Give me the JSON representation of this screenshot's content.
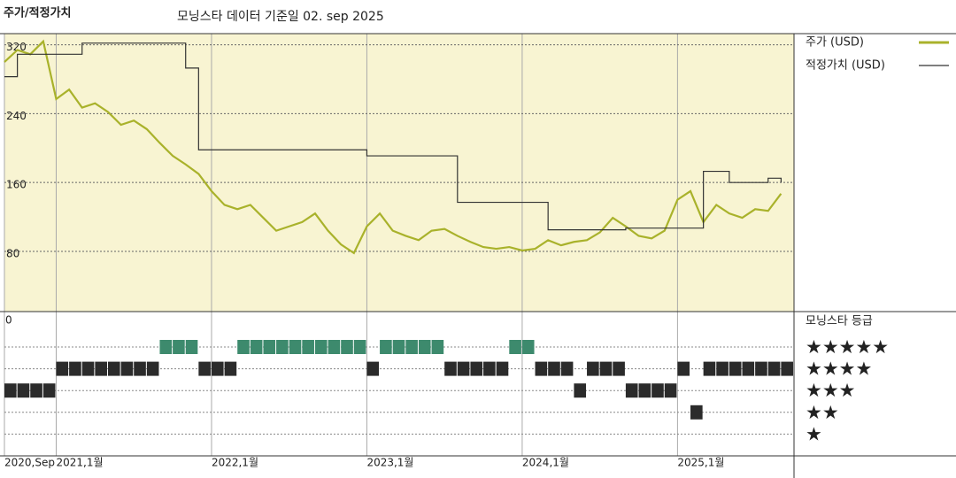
{
  "chart_data": [
    {
      "type": "line",
      "title": "주가/적정가치",
      "subtitle": "모닝스타 데이터 기준일 02. sep 2025",
      "x": [
        "2020-09",
        "2020-10",
        "2020-11",
        "2020-12",
        "2021-01",
        "2021-02",
        "2021-03",
        "2021-04",
        "2021-05",
        "2021-06",
        "2021-07",
        "2021-08",
        "2021-09",
        "2021-10",
        "2021-11",
        "2021-12",
        "2022-01",
        "2022-02",
        "2022-03",
        "2022-04",
        "2022-05",
        "2022-06",
        "2022-07",
        "2022-08",
        "2022-09",
        "2022-10",
        "2022-11",
        "2022-12",
        "2023-01",
        "2023-02",
        "2023-03",
        "2023-04",
        "2023-05",
        "2023-06",
        "2023-07",
        "2023-08",
        "2023-09",
        "2023-10",
        "2023-11",
        "2023-12",
        "2024-01",
        "2024-02",
        "2024-03",
        "2024-04",
        "2024-05",
        "2024-06",
        "2024-07",
        "2024-08",
        "2024-09",
        "2024-10",
        "2024-11",
        "2024-12",
        "2025-01",
        "2025-02",
        "2025-03",
        "2025-04",
        "2025-05",
        "2025-06",
        "2025-07",
        "2025-08",
        "2025-09"
      ],
      "series": [
        {
          "name": "주가 (USD)",
          "color": "#a9b22b",
          "values": [
            300,
            314,
            309,
            324,
            257,
            268,
            247,
            252,
            242,
            227,
            232,
            222,
            206,
            191,
            181,
            170,
            150,
            134,
            129,
            134,
            119,
            104,
            109,
            114,
            124,
            104,
            88,
            78,
            109,
            124,
            104,
            98,
            93,
            104,
            106,
            98,
            91,
            85,
            83,
            85,
            81,
            83,
            93,
            87,
            91,
            93,
            102,
            119,
            109,
            98,
            95,
            104,
            140,
            150,
            114,
            134,
            124,
            119,
            129,
            127,
            147
          ]
        },
        {
          "name": "적정가치 (USD)",
          "color": "#333333",
          "step": true,
          "values": [
            283,
            309,
            309,
            309,
            309,
            309,
            322,
            322,
            322,
            322,
            322,
            322,
            322,
            322,
            293,
            198,
            198,
            198,
            198,
            198,
            198,
            198,
            198,
            198,
            198,
            198,
            198,
            198,
            191,
            191,
            191,
            191,
            191,
            191,
            191,
            137,
            137,
            137,
            137,
            137,
            137,
            137,
            105,
            105,
            105,
            105,
            105,
            105,
            107,
            107,
            107,
            107,
            107,
            107,
            173,
            173,
            160,
            160,
            160,
            165,
            160
          ]
        }
      ],
      "xlim": [
        "2020-09",
        "2025-10"
      ],
      "xticks": [
        {
          "value": "2020-09",
          "label": "2020,Sep"
        },
        {
          "value": "2021-01",
          "label": "2021,1월"
        },
        {
          "value": "2022-01",
          "label": "2022,1월"
        },
        {
          "value": "2023-01",
          "label": "2023,1월"
        },
        {
          "value": "2024-01",
          "label": "2024,1월"
        },
        {
          "value": "2025-01",
          "label": "2025,1월"
        }
      ],
      "ylim": [
        10,
        333
      ],
      "yticks": [
        80,
        160,
        240,
        320
      ],
      "grid": true,
      "background": "#f8f4d2",
      "legend": "right"
    },
    {
      "type": "rating",
      "title": "모닝스타 등급",
      "corner_label": "0",
      "x": [
        "2020-09",
        "2020-10",
        "2020-11",
        "2020-12",
        "2021-01",
        "2021-02",
        "2021-03",
        "2021-04",
        "2021-05",
        "2021-06",
        "2021-07",
        "2021-08",
        "2021-09",
        "2021-10",
        "2021-11",
        "2021-12",
        "2022-01",
        "2022-02",
        "2022-03",
        "2022-04",
        "2022-05",
        "2022-06",
        "2022-07",
        "2022-08",
        "2022-09",
        "2022-10",
        "2022-11",
        "2022-12",
        "2023-01",
        "2023-02",
        "2023-03",
        "2023-04",
        "2023-05",
        "2023-06",
        "2023-07",
        "2023-08",
        "2023-09",
        "2023-10",
        "2023-11",
        "2023-12",
        "2024-01",
        "2024-02",
        "2024-03",
        "2024-04",
        "2024-05",
        "2024-06",
        "2024-07",
        "2024-08",
        "2024-09",
        "2024-10",
        "2024-11",
        "2024-12",
        "2025-01",
        "2025-02",
        "2025-03",
        "2025-04",
        "2025-05",
        "2025-06",
        "2025-07",
        "2025-08",
        "2025-09"
      ],
      "values": [
        3,
        3,
        3,
        3,
        4,
        4,
        4,
        4,
        4,
        4,
        4,
        4,
        5,
        5,
        5,
        4,
        4,
        4,
        5,
        5,
        5,
        5,
        5,
        5,
        5,
        5,
        5,
        5,
        4,
        5,
        5,
        5,
        5,
        5,
        4,
        4,
        4,
        4,
        4,
        5,
        5,
        4,
        4,
        4,
        3,
        4,
        4,
        4,
        3,
        3,
        3,
        3,
        4,
        2,
        4,
        4,
        4,
        4,
        4,
        4,
        4
      ],
      "levels": [
        {
          "value": 5,
          "label": "★★★★★"
        },
        {
          "value": 4,
          "label": "★★★★"
        },
        {
          "value": 3,
          "label": "★★★"
        },
        {
          "value": 2,
          "label": "★★"
        },
        {
          "value": 1,
          "label": "★"
        }
      ],
      "color": "#2b2b2b",
      "top_color": "#3d8a6d"
    }
  ]
}
